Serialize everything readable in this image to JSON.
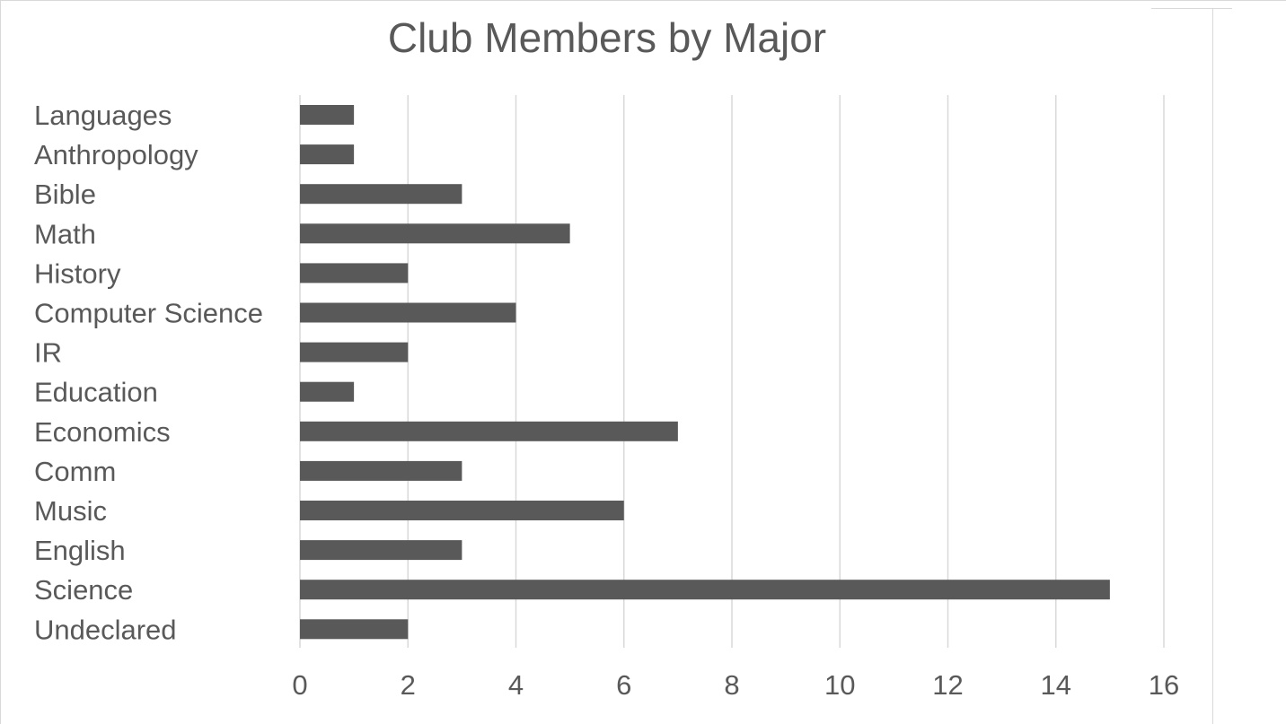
{
  "chart_data": {
    "type": "bar",
    "orientation": "horizontal",
    "title": "Club Members by Major",
    "xlabel": "",
    "ylabel": "",
    "categories": [
      "Languages",
      "Anthropology",
      "Bible",
      "Math",
      "History",
      "Computer Science",
      "IR",
      "Education",
      "Economics",
      "Comm",
      "Music",
      "English",
      "Science",
      "Undeclared"
    ],
    "values": [
      1,
      1,
      3,
      5,
      2,
      4,
      2,
      1,
      7,
      3,
      6,
      3,
      15,
      2
    ],
    "xlim": [
      0,
      16
    ],
    "xticks": [
      0,
      2,
      4,
      6,
      8,
      10,
      12,
      14,
      16
    ],
    "grid": "vertical",
    "legend": "none",
    "colors": {
      "bar": "#595959",
      "grid": "#d9d9d9",
      "text": "#595959"
    }
  }
}
